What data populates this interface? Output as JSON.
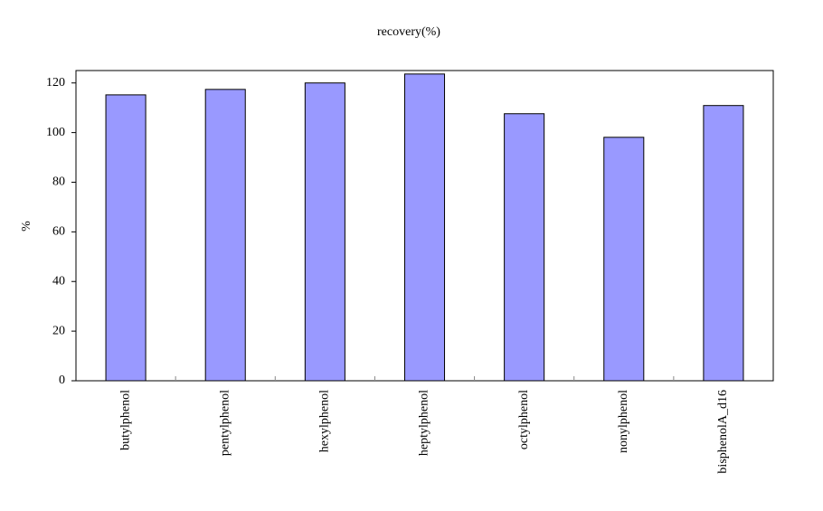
{
  "chart_data": {
    "type": "bar",
    "title": "recovery(%)",
    "y_label": "%",
    "categories": [
      "butylphenol",
      "pentylphenol",
      "hexylphenol",
      "heptylphenol",
      "octylphenol",
      "nonylphenol",
      "bisphenolA_d16"
    ],
    "values": [
      115.2,
      117.4,
      120,
      123.6,
      107.6,
      98.1,
      110.9
    ],
    "color": "#9999ff",
    "ylim": [
      0,
      125
    ],
    "yticks": [
      0,
      20,
      40,
      60,
      80,
      100,
      120
    ],
    "grid": false
  }
}
